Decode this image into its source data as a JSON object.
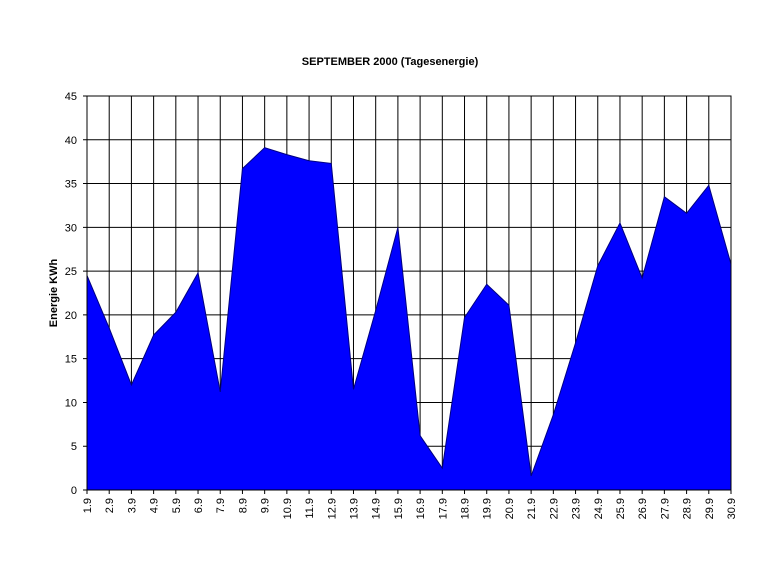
{
  "chart_data": {
    "type": "area",
    "title": "SEPTEMBER 2000 (Tagesenergie)",
    "y_label": "Energie KWh",
    "categories": [
      "1.9",
      "2.9",
      "3.9",
      "4.9",
      "5.9",
      "6.9",
      "7.9",
      "8.9",
      "9.9",
      "10.9",
      "11.9",
      "12.9",
      "13.9",
      "14.9",
      "15.9",
      "16.9",
      "17.9",
      "18.9",
      "19.9",
      "20.9",
      "21.9",
      "22.9",
      "23.9",
      "24.9",
      "25.9",
      "26.9",
      "27.9",
      "28.9",
      "29.9",
      "30.9"
    ],
    "values": [
      24.5,
      18.5,
      12,
      17.7,
      20.3,
      24.8,
      11.2,
      36.7,
      39.1,
      38.3,
      37.6,
      37.3,
      11.5,
      20.5,
      30,
      6.2,
      2.5,
      19.7,
      23.5,
      21.1,
      1.6,
      8.6,
      16.8,
      25.6,
      30.5,
      24.2,
      33.5,
      31.6,
      34.8,
      25.8
    ],
    "color": "#0000ff",
    "ylim": [
      0,
      45
    ],
    "yticks": [
      0,
      5,
      10,
      15,
      20,
      25,
      30,
      35,
      40,
      45
    ],
    "grid": true
  }
}
